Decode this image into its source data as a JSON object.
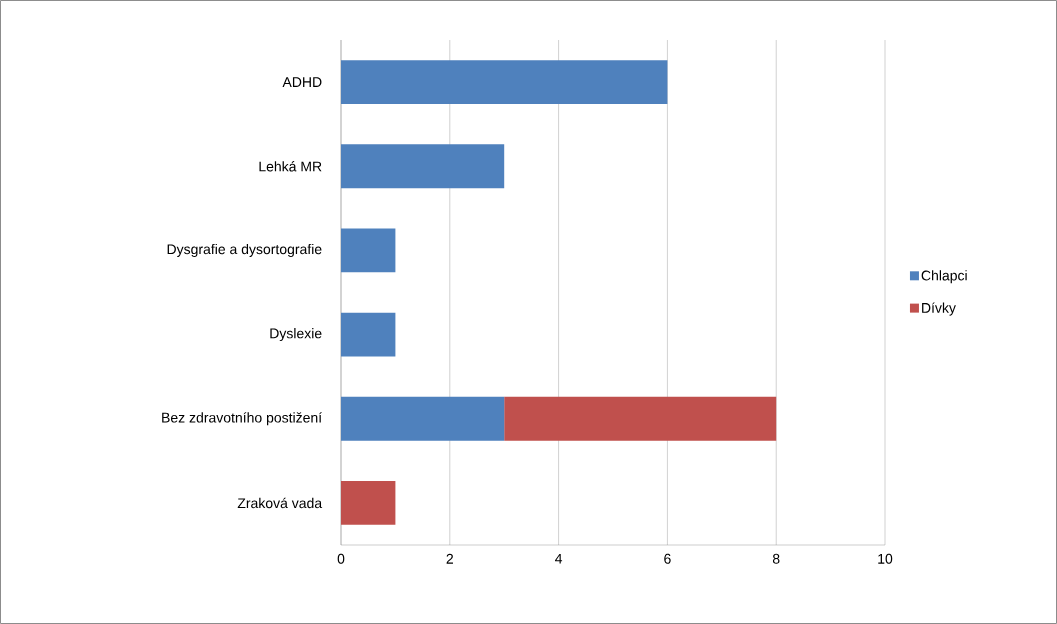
{
  "chart_data": {
    "type": "bar",
    "orientation": "horizontal",
    "stacked": true,
    "categories": [
      "ADHD",
      "Lehká MR",
      "Dysgrafie a dysortografie",
      "Dyslexie",
      "Bez zdravotního postižení",
      "Zraková vada"
    ],
    "series": [
      {
        "name": "Chlapci",
        "color": "#4f81bd",
        "values": [
          6,
          3,
          1,
          1,
          3,
          0
        ]
      },
      {
        "name": "Dívky",
        "color": "#c0504d",
        "values": [
          0,
          0,
          0,
          0,
          5,
          1
        ]
      }
    ],
    "xlim": [
      0,
      10
    ],
    "xticks": [
      0,
      2,
      4,
      6,
      8,
      10
    ],
    "grid": "x",
    "legend": "right"
  }
}
